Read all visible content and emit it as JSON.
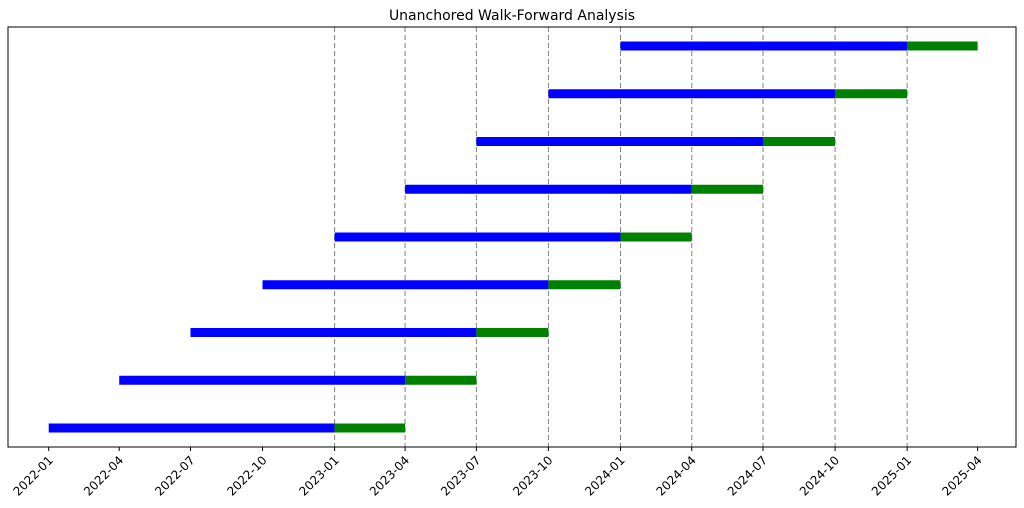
{
  "chart_data": {
    "type": "bar",
    "orientation": "horizontal-gantt",
    "title": "Unanchored Walk-Forward Analysis",
    "xlabel": "",
    "ylabel": "",
    "x_ticks": [
      "2022-01",
      "2022-04",
      "2022-07",
      "2022-10",
      "2023-01",
      "2023-04",
      "2023-07",
      "2023-10",
      "2024-01",
      "2024-04",
      "2024-07",
      "2024-10",
      "2025-01",
      "2025-04"
    ],
    "x_range": [
      "2021-11-10",
      "2025-05-20"
    ],
    "vlines": [
      "2023-01",
      "2023-04",
      "2023-07",
      "2023-10",
      "2024-01",
      "2024-04",
      "2024-07",
      "2024-10",
      "2025-01"
    ],
    "vline_color": "#808080",
    "grid": false,
    "series": [
      {
        "role": "train",
        "color": "#0000ff",
        "values": [
          {
            "start": "2022-01",
            "end": "2023-01"
          },
          {
            "start": "2022-04",
            "end": "2023-04"
          },
          {
            "start": "2022-07",
            "end": "2023-07"
          },
          {
            "start": "2022-10",
            "end": "2023-10"
          },
          {
            "start": "2023-01",
            "end": "2024-01"
          },
          {
            "start": "2023-04",
            "end": "2024-04"
          },
          {
            "start": "2023-07",
            "end": "2024-07"
          },
          {
            "start": "2023-10",
            "end": "2024-10"
          },
          {
            "start": "2024-01",
            "end": "2025-01"
          }
        ]
      },
      {
        "role": "test",
        "color": "#008000",
        "values": [
          {
            "start": "2023-01",
            "end": "2023-04"
          },
          {
            "start": "2023-04",
            "end": "2023-07"
          },
          {
            "start": "2023-07",
            "end": "2023-10"
          },
          {
            "start": "2023-10",
            "end": "2024-01"
          },
          {
            "start": "2024-01",
            "end": "2024-04"
          },
          {
            "start": "2024-04",
            "end": "2024-07"
          },
          {
            "start": "2024-07",
            "end": "2024-10"
          },
          {
            "start": "2024-10",
            "end": "2025-01"
          },
          {
            "start": "2025-01",
            "end": "2025-04"
          }
        ]
      }
    ]
  }
}
